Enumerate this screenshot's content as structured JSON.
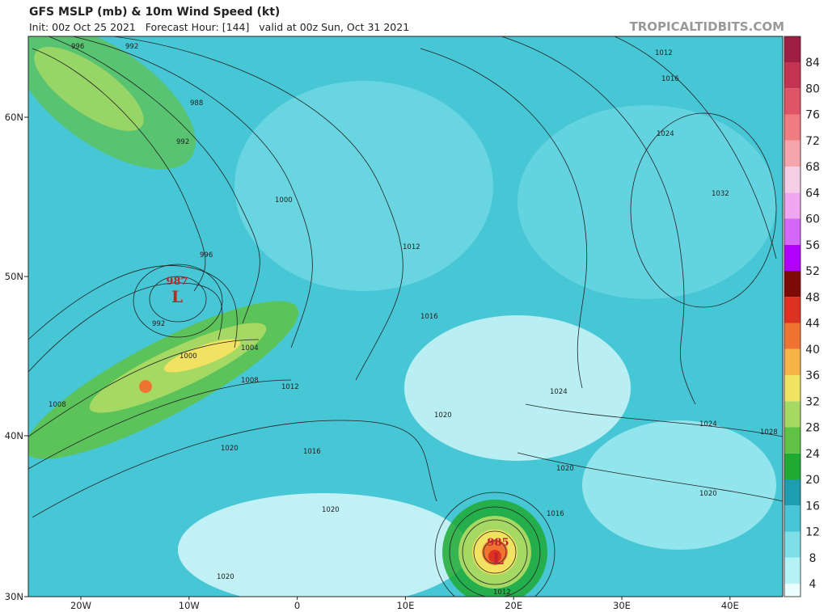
{
  "header": {
    "title": "GFS MSLP (mb) & 10m Wind Speed (kt)",
    "subtitle": "Init: 00z Oct 25 2021   Forecast Hour: [144]   valid at 00z Sun, Oct 31 2021",
    "site": "TROPICALTIDBITS.COM"
  },
  "map": {
    "lat_labels": [
      "60N",
      "50N",
      "40N",
      "30N"
    ],
    "lon_labels": [
      "20W",
      "10W",
      "0",
      "10E",
      "20E",
      "30E",
      "40E"
    ],
    "lows": [
      {
        "symbol": "L",
        "pressure": "987"
      },
      {
        "symbol": "L",
        "pressure": "985"
      }
    ],
    "isobar_labels": [
      "996",
      "992",
      "988",
      "992",
      "1000",
      "996",
      "992",
      "1000",
      "1004",
      "1008",
      "1008",
      "1020",
      "1016",
      "1012",
      "1012",
      "1016",
      "1020",
      "1020",
      "1024",
      "1032",
      "1024",
      "1024",
      "1028",
      "1020",
      "1016",
      "1020",
      "1020",
      "1012",
      "1012",
      "1016"
    ]
  },
  "colorbar": {
    "labels": [
      4,
      8,
      12,
      16,
      20,
      24,
      28,
      32,
      36,
      40,
      44,
      48,
      52,
      56,
      60,
      64,
      68,
      72,
      76,
      80,
      84
    ],
    "colors": [
      "#eaffff",
      "#b4f2f6",
      "#7edfe9",
      "#48c6d6",
      "#1c9db0",
      "#1faa34",
      "#5fc244",
      "#a6d964",
      "#f1e261",
      "#f6b446",
      "#ef7432",
      "#dd3222",
      "#7e0a08",
      "#b200ff",
      "#d467f7",
      "#f1a6f0",
      "#f6cde6",
      "#f5a6ab",
      "#ef7c7f",
      "#df5467",
      "#c43452",
      "#a01e44"
    ]
  }
}
